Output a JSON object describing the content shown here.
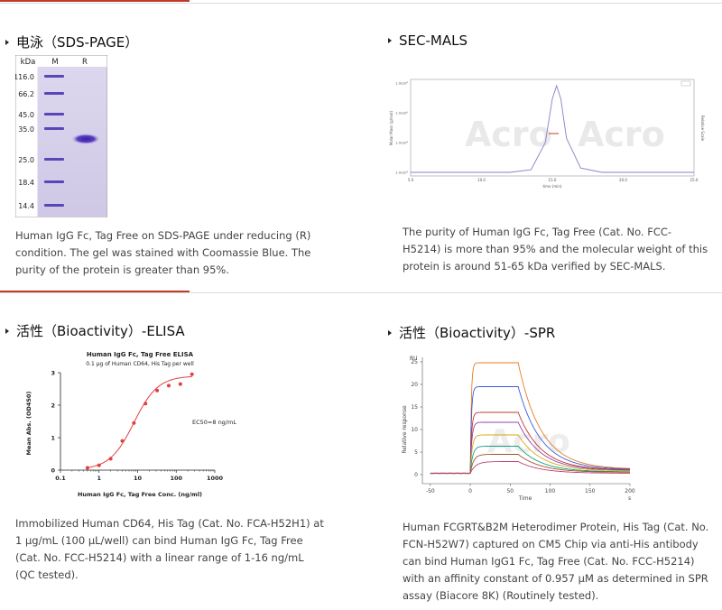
{
  "sections": {
    "sds_page": {
      "title": "电泳（SDS-PAGE）",
      "gel": {
        "header_kda": "kDa",
        "header_m": "M",
        "header_r": "R",
        "ladder": [
          "116.0",
          "66.2",
          "45.0",
          "35.0",
          "25.0",
          "18.4",
          "14.4"
        ]
      },
      "description": "Human IgG Fc, Tag Free on SDS-PAGE under reducing (R) condition. The gel was stained with Coomassie Blue. The purity of the protein is greater than 95%."
    },
    "sec_mals": {
      "title": "SEC-MALS",
      "description": "The purity of Human IgG Fc, Tag Free (Cat. No. FCC-H5214) is more than 95% and the molecular weight of this protein is around 51-65 kDa verified by SEC-MALS."
    },
    "elisa": {
      "title": "活性（Bioactivity）-ELISA",
      "description": "Immobilized Human CD64, His Tag (Cat. No. FCA-H52H1) at 1 μg/mL (100 μL/well) can bind Human IgG Fc, Tag Free (Cat. No. FCC-H5214) with a linear range of 1-16 ng/mL (QC tested)."
    },
    "spr": {
      "title": "活性（Bioactivity）-SPR",
      "description": "Human FCGRT&B2M Heterodimer Protein, His Tag (Cat. No. FCN-H52W7) captured on CM5 Chip via anti-His antibody can bind Human IgG1 Fc, Tag Free (Cat. No. FCC-H5214) with an affinity constant of 0.957 μM as determined in SPR assay (Biacore 8K) (Routinely tested)."
    }
  },
  "chart_data": [
    {
      "type": "line",
      "name": "sec-mals",
      "xlabel": "time (min)",
      "ylabel": "Molar Mass (g/mol)",
      "y2label": "Relative Scale",
      "xticks": [
        "5.0",
        "10.0",
        "15.0",
        "20.0",
        "25.0"
      ],
      "yticks": [
        "1.0x10⁶",
        "1.0x10⁵",
        "1.0x10⁴",
        "1.0x10³"
      ],
      "x": [
        5,
        12,
        13.5,
        14.5,
        15.0,
        15.3,
        15.6,
        16.0,
        17.0,
        18.5,
        25
      ],
      "y": [
        0.01,
        0.01,
        0.04,
        0.35,
        0.85,
        1.0,
        0.85,
        0.4,
        0.06,
        0.01,
        0.01
      ],
      "xlim": [
        5,
        25
      ]
    },
    {
      "type": "scatter",
      "name": "elisa",
      "title": "Human IgG Fc, Tag Free ELISA",
      "subtitle": "0.1 μg of Human CD64, His Tag per well",
      "xlabel": "Human IgG Fc, Tag Free Conc. (ng/ml)",
      "ylabel": "Mean Abs. (OD450)",
      "annotation": "EC50=8 ng/mL",
      "xscale": "log",
      "xlim": [
        0.1,
        1000
      ],
      "ylim": [
        0,
        3
      ],
      "xticks": [
        "0.1",
        "1",
        "10",
        "100",
        "1000"
      ],
      "yticks": [
        "0",
        "1",
        "2",
        "3"
      ],
      "x": [
        0.5,
        1,
        2,
        4,
        8,
        16,
        32,
        64,
        128,
        256
      ],
      "y": [
        0.07,
        0.15,
        0.35,
        0.9,
        1.45,
        2.05,
        2.45,
        2.6,
        2.65,
        2.95
      ]
    },
    {
      "type": "line",
      "name": "spr",
      "xlabel": "Time",
      "xunit": "s",
      "ylabel": "Relative response",
      "yunit": "RU",
      "xlim": [
        -60,
        200
      ],
      "ylim": [
        -2,
        26
      ],
      "xticks": [
        "-50",
        "0",
        "50",
        "100",
        "150",
        "200"
      ],
      "yticks": [
        "0",
        "5",
        "10",
        "15",
        "20",
        "25"
      ],
      "series": [
        {
          "color": "#e67e22",
          "plateau": 24.5,
          "end": 1.2
        },
        {
          "color": "#3b5bdb",
          "plateau": 19.2,
          "end": 1.1
        },
        {
          "color": "#c0392b",
          "plateau": 13.5,
          "end": 1.0
        },
        {
          "color": "#8e44ad",
          "plateau": 11.3,
          "end": 0.9
        },
        {
          "color": "#d4ac0d",
          "plateau": 8.5,
          "end": 0.8
        },
        {
          "color": "#16a085",
          "plateau": 6.0,
          "end": 0.6
        },
        {
          "color": "#a0522d",
          "plateau": 4.2,
          "end": 0.5
        },
        {
          "color": "#c04070",
          "plateau": 2.6,
          "end": 0.3
        }
      ]
    }
  ]
}
